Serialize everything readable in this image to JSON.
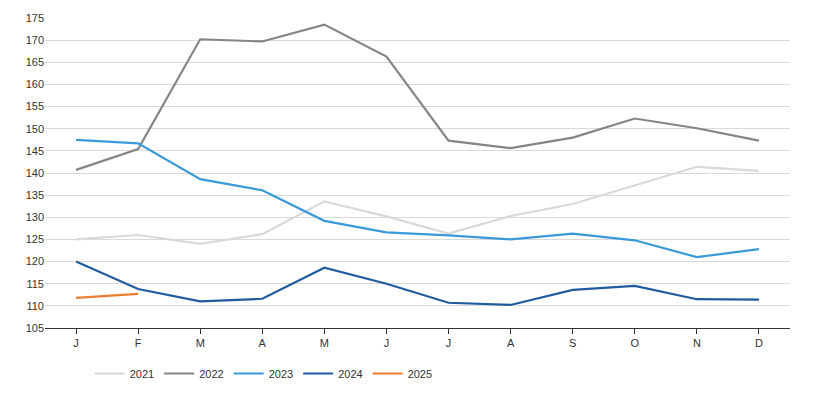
{
  "chart_data": {
    "type": "line",
    "categories": [
      "J",
      "F",
      "M",
      "A",
      "M",
      "J",
      "J",
      "A",
      "S",
      "O",
      "N",
      "D"
    ],
    "series": [
      {
        "name": "2021",
        "color": "#d9d9d9",
        "values": [
          125,
          126,
          124,
          126.2,
          133.6,
          130.2,
          126.3,
          130.3,
          133,
          137.2,
          141.4,
          140.5
        ]
      },
      {
        "name": "2022",
        "color": "#858585",
        "values": [
          140.7,
          145.4,
          170.2,
          169.7,
          173.5,
          166.3,
          147.3,
          145.6,
          148,
          152.3,
          150.1,
          147.3
        ]
      },
      {
        "name": "2023",
        "color": "#3a9ad9",
        "values": [
          147.5,
          146.7,
          138.6,
          136.1,
          129.2,
          126.6,
          125.9,
          125,
          126.3,
          124.8,
          121,
          122.8
        ]
      },
      {
        "name": "2024",
        "color": "#1f5b9e",
        "values": [
          120,
          113.8,
          111,
          111.6,
          118.6,
          115,
          110.7,
          110.2,
          113.6,
          114.5,
          111.5,
          111.4
        ]
      },
      {
        "name": "2025",
        "color": "#ed7d31",
        "values": [
          111.8,
          112.7,
          null,
          null,
          null,
          null,
          null,
          null,
          null,
          null,
          null,
          null
        ]
      }
    ],
    "ylim": [
      105,
      175
    ],
    "yticks": [
      105,
      110,
      115,
      120,
      125,
      130,
      135,
      140,
      145,
      150,
      155,
      160,
      165,
      170,
      175
    ],
    "grid": true,
    "legend": "bottom"
  }
}
